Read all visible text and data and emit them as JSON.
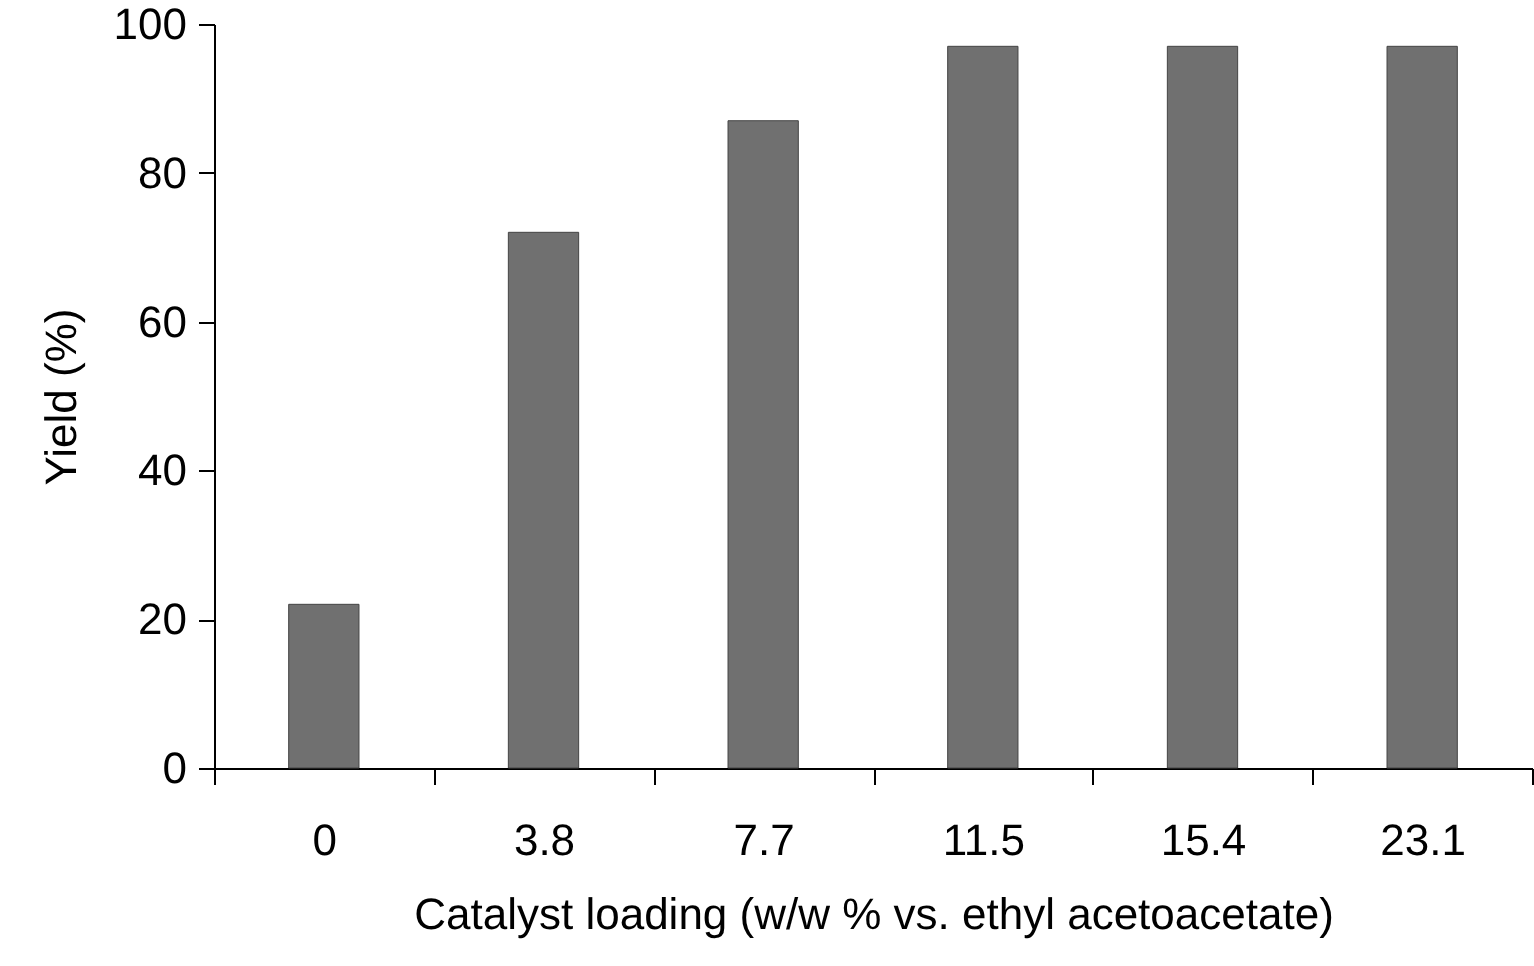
{
  "chart_data": {
    "type": "bar",
    "xlabel": "Catalyst loading (w/w % vs. ethyl acetoacetate)",
    "ylabel": "Yield (%)",
    "categories": [
      "0",
      "3.8",
      "7.7",
      "11.5",
      "15.4",
      "23.1"
    ],
    "values": [
      22,
      72,
      87,
      97,
      97,
      97
    ],
    "color": "#707070",
    "ylim": [
      0,
      100
    ],
    "yticks": [
      0,
      20,
      40,
      60,
      80,
      100
    ],
    "grid": false
  }
}
